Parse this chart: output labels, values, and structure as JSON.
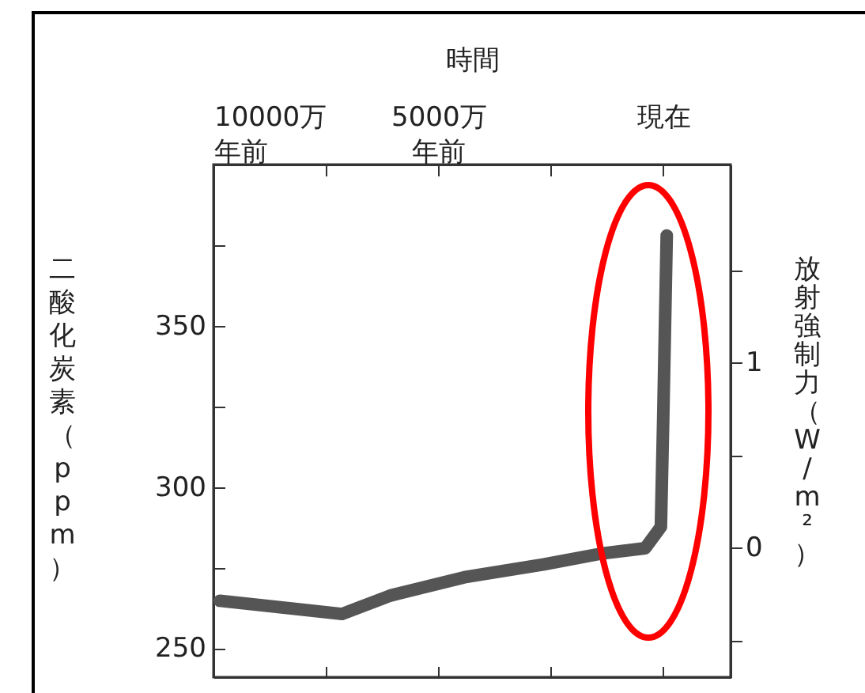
{
  "chart_data": {
    "type": "line",
    "xlabel": "時間",
    "ylabel": "二酸化炭素（ppm）",
    "y2label": "放射強制力（W/m²）",
    "x": [
      9860,
      7140,
      6070,
      4420,
      2650,
      1350,
      400,
      50,
      0,
      -80
    ],
    "series": [
      {
        "color": "#555555",
        "values": [
          264.7,
          260.6,
          266.3,
          272,
          276,
          279.4,
          281,
          287.6,
          320,
          378
        ]
      }
    ],
    "xlim": [
      10000,
      -1500
    ],
    "xticks": [
      {
        "value": 10000,
        "label": "10000万年前"
      },
      {
        "value": 7500,
        "label": null
      },
      {
        "value": 5000,
        "label": "5000万年前"
      },
      {
        "value": 2500,
        "label": null
      },
      {
        "value": 0,
        "label": "現在"
      }
    ],
    "ylim": [
      241,
      400
    ],
    "yticks": [
      250,
      {
        "value": 275,
        "label": null
      },
      300,
      {
        "value": 325,
        "label": null
      },
      350,
      {
        "value": 375,
        "label": null
      }
    ],
    "y2lim": [
      -0.7,
      2.07
    ],
    "y2ticks": [
      {
        "value": -0.5,
        "label": null
      },
      0,
      {
        "value": 0.5,
        "label": null
      },
      1,
      {
        "value": 1.5,
        "label": null
      }
    ],
    "grid": false,
    "line_style": "solid"
  }
}
